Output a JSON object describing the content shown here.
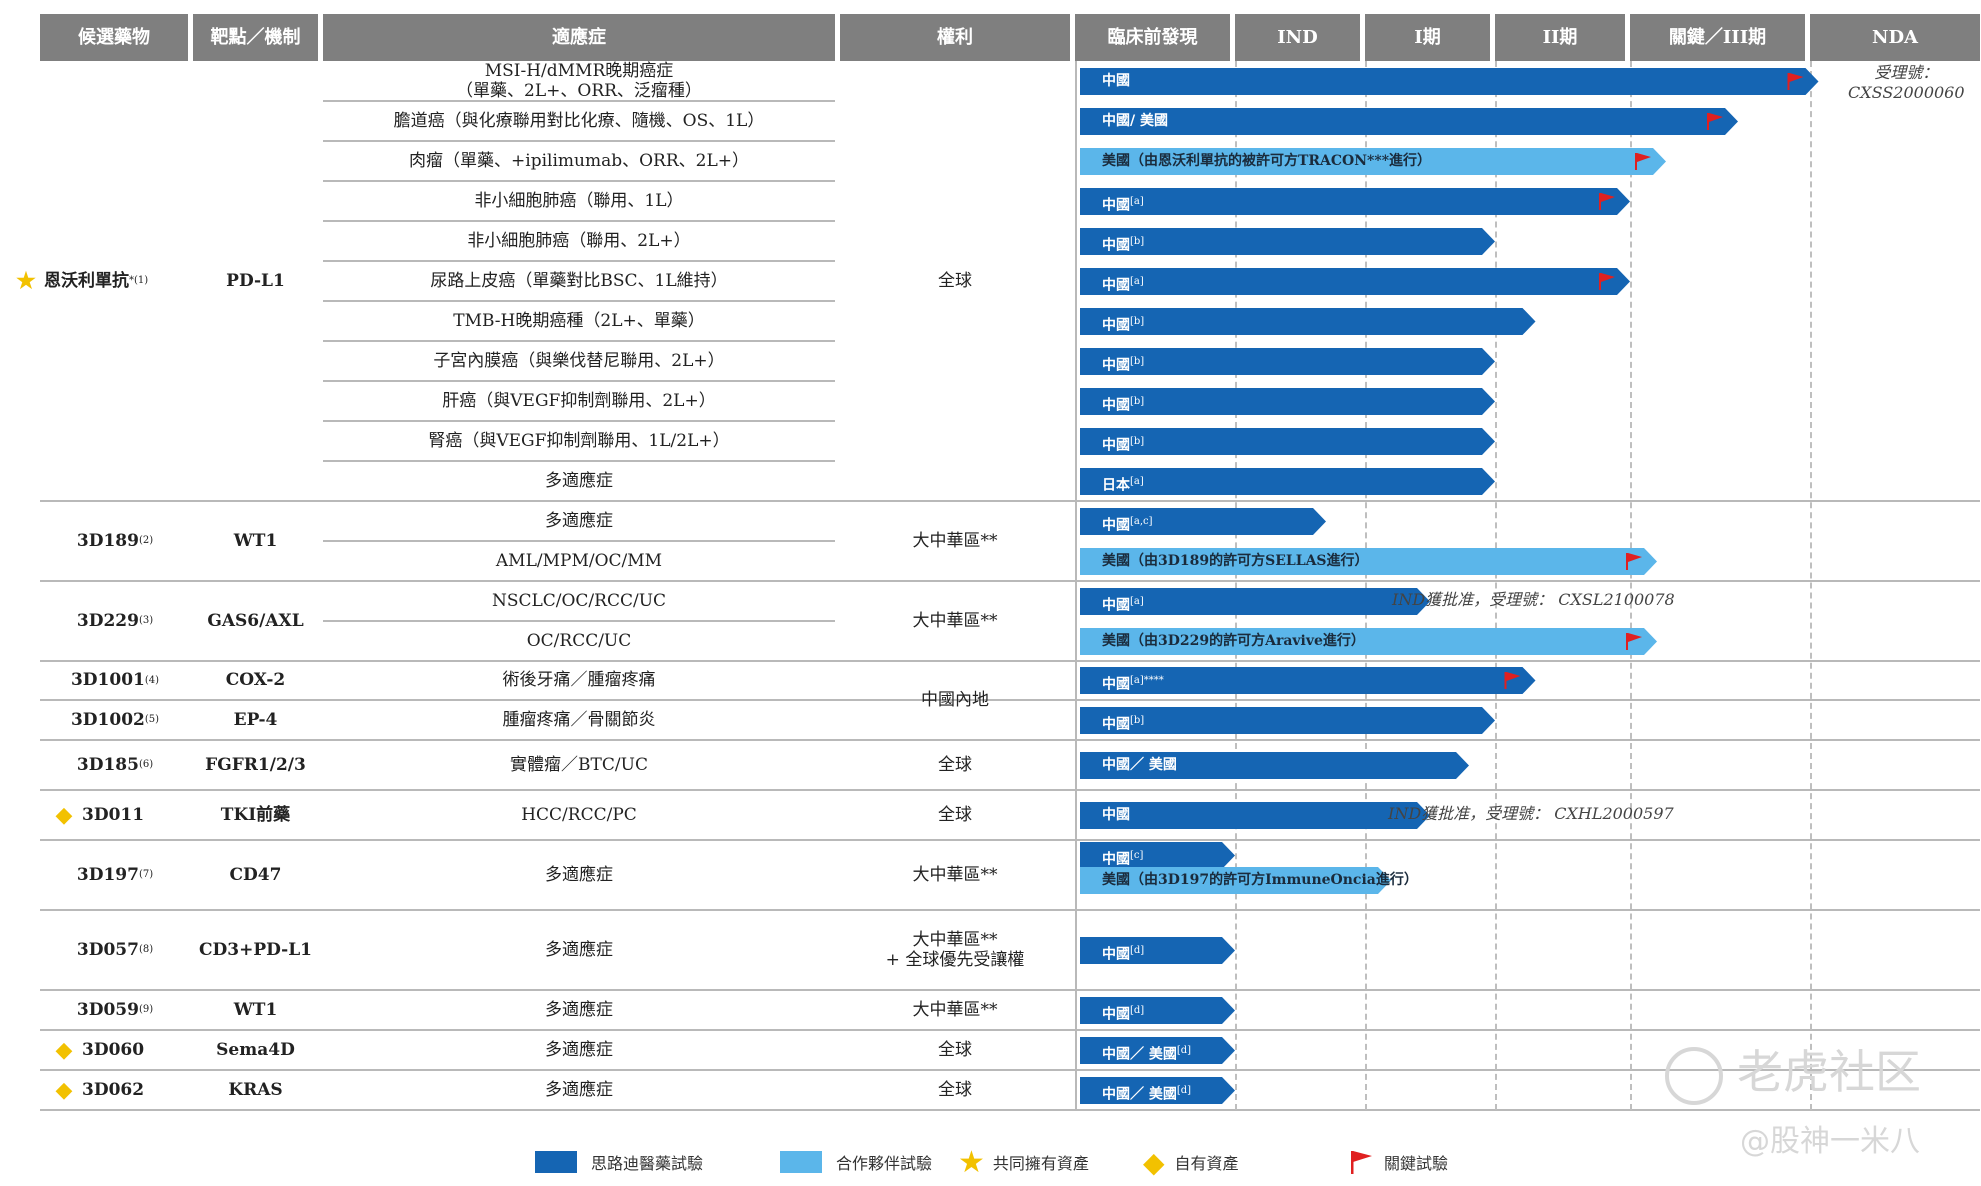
{
  "columns": {
    "candidate": "候選藥物",
    "target": "靶點／機制",
    "indication": "適應症",
    "rights": "權利",
    "stages": [
      "臨床前發現",
      "IND",
      "I期",
      "II期",
      "關鍵／III期",
      "NDA"
    ]
  },
  "colors": {
    "in_house": "#1565b3",
    "partner": "#5bb6ea",
    "flag": "#e02020",
    "star": "#f2c100",
    "diamond": "#f2c100",
    "header_bg": "#7f7f7f"
  },
  "groups": [
    {
      "candidate": "恩沃利單抗",
      "sup": "*(1)",
      "marker": "star",
      "target": "PD-L1",
      "rights": "全球",
      "rows": [
        0,
        10
      ]
    },
    {
      "candidate": "3D189",
      "sup": "(2)",
      "marker": "",
      "target": "WT1",
      "rights": "大中華區**",
      "rows": [
        11,
        12
      ]
    },
    {
      "candidate": "3D229",
      "sup": "(3)",
      "marker": "",
      "target": "GAS6/AXL",
      "rights": "大中華區**",
      "rows": [
        13,
        14
      ]
    },
    {
      "candidate": "3D1001",
      "sup": "(4)",
      "marker": "",
      "target": "COX-2",
      "rights": "",
      "rows": [
        15,
        15
      ]
    },
    {
      "candidate": "3D1002",
      "sup": "(5)",
      "marker": "",
      "target": "EP-4",
      "rights": "",
      "rows": [
        16,
        16
      ]
    },
    {
      "candidate": "3D185",
      "sup": "(6)",
      "marker": "",
      "target": "FGFR1/2/3",
      "rights": "全球",
      "rows": [
        17,
        17
      ]
    },
    {
      "candidate": "3D011",
      "sup": "",
      "marker": "diamond",
      "target": "TKI前藥",
      "rights": "全球",
      "rows": [
        18,
        18
      ]
    },
    {
      "candidate": "3D197",
      "sup": "(7)",
      "marker": "",
      "target": "CD47",
      "rights": "大中華區**",
      "rows": [
        19,
        19
      ]
    },
    {
      "candidate": "3D057",
      "sup": "(8)",
      "marker": "",
      "target": "CD3+PD-L1",
      "rights": "大中華區**\n+ 全球優先受讓權",
      "rows": [
        20,
        20
      ]
    },
    {
      "candidate": "3D059",
      "sup": "(9)",
      "marker": "",
      "target": "WT1",
      "rights": "大中華區**",
      "rows": [
        21,
        21
      ]
    },
    {
      "candidate": "3D060",
      "sup": "",
      "marker": "diamond",
      "target": "Sema4D",
      "rights": "全球",
      "rows": [
        22,
        22
      ]
    },
    {
      "candidate": "3D062",
      "sup": "",
      "marker": "diamond",
      "target": "KRAS",
      "rights": "全球",
      "rows": [
        23,
        23
      ]
    }
  ],
  "shared_rights": [
    {
      "text": "中國內地",
      "rows": [
        15,
        16
      ]
    }
  ],
  "indications": [
    "MSI-H/dMMR晚期癌症\n（單藥、2L+、ORR、泛瘤種）",
    "膽道癌（與化療聯用對比化療、隨機、OS、1L）",
    "肉瘤（單藥、+ipilimumab、ORR、2L+）",
    "非小細胞肺癌（聯用、1L）",
    "非小細胞肺癌（聯用、2L+）",
    "尿路上皮癌（單藥對比BSC、1L維持）",
    "TMB-H晚期癌種（2L+、單藥）",
    "子宮內膜癌（與樂伐替尼聯用、2L+）",
    "肝癌（與VEGF抑制劑聯用、2L+）",
    "腎癌（與VEGF抑制劑聯用、1L/2L+）",
    "多適應症",
    "多適應症",
    "AML/MPM/OC/MM",
    "NSCLC/OC/RCC/UC",
    "OC/RCC/UC",
    "術後牙痛／腫瘤疼痛",
    "腫瘤疼痛／骨關節炎",
    "實體瘤／BTC/UC",
    "HCC/RCC/PC",
    "多適應症",
    "多適應症",
    "多適應症",
    "多適應症",
    "多適應症"
  ],
  "notes": [
    {
      "row": 0,
      "text": "受理號：\nCXSS2000060"
    },
    {
      "row": 13,
      "text": "IND獲批准，受理號： CXSL2100078"
    },
    {
      "row": 18,
      "text": "IND獲批准，受理號： CXHL2000597"
    }
  ],
  "legend": {
    "in_house": "思路迪醫藥試驗",
    "partner": "合作夥伴試驗",
    "co_owned": "共同擁有資產",
    "own": "自有資產",
    "pivotal": "關鍵試驗"
  },
  "watermark": {
    "logo": "老虎社区",
    "handle": "@股神一米八"
  },
  "chart_data": {
    "type": "bar",
    "title": "",
    "stage_axis": [
      "臨床前發現",
      "IND",
      "I期",
      "II期",
      "關鍵／III期",
      "NDA"
    ],
    "series_types": [
      "思路迪醫藥試驗",
      "合作夥伴試驗"
    ],
    "bars": [
      {
        "row": 0,
        "sub": 0,
        "label": "中國",
        "sup": "",
        "kind": "in_house",
        "stage_end": 5.05,
        "flag": true
      },
      {
        "row": 1,
        "sub": 0,
        "label": "中國/ 美國",
        "sup": "",
        "kind": "in_house",
        "stage_end": 4.6,
        "flag": true
      },
      {
        "row": 2,
        "sub": 0,
        "label": "美國（由恩沃利單抗的被許可方TRACON***進行）",
        "sup": "",
        "kind": "partner",
        "stage_end": 4.2,
        "flag": true
      },
      {
        "row": 3,
        "sub": 0,
        "label": "中國",
        "sup": "[a]",
        "kind": "in_house",
        "stage_end": 4.0,
        "flag": true
      },
      {
        "row": 4,
        "sub": 0,
        "label": "中國",
        "sup": "[b]",
        "kind": "in_house",
        "stage_end": 3.0,
        "flag": false
      },
      {
        "row": 5,
        "sub": 0,
        "label": "中國",
        "sup": "[a]",
        "kind": "in_house",
        "stage_end": 4.0,
        "flag": true
      },
      {
        "row": 6,
        "sub": 0,
        "label": "中國",
        "sup": "[b]",
        "kind": "in_house",
        "stage_end": 3.3,
        "flag": false
      },
      {
        "row": 7,
        "sub": 0,
        "label": "中國",
        "sup": "[b]",
        "kind": "in_house",
        "stage_end": 3.0,
        "flag": false
      },
      {
        "row": 8,
        "sub": 0,
        "label": "中國",
        "sup": "[b]",
        "kind": "in_house",
        "stage_end": 3.0,
        "flag": false
      },
      {
        "row": 9,
        "sub": 0,
        "label": "中國",
        "sup": "[b]",
        "kind": "in_house",
        "stage_end": 3.0,
        "flag": false
      },
      {
        "row": 10,
        "sub": 0,
        "label": "日本",
        "sup": "[a]",
        "kind": "in_house",
        "stage_end": 3.0,
        "flag": false
      },
      {
        "row": 11,
        "sub": 0,
        "label": "中國",
        "sup": "[a,c]",
        "kind": "in_house",
        "stage_end": 1.7,
        "flag": false
      },
      {
        "row": 12,
        "sub": 0,
        "label": "美國（由3D189的許可方SELLAS進行）",
        "sup": "",
        "kind": "partner",
        "stage_end": 4.15,
        "flag": true
      },
      {
        "row": 13,
        "sub": 0,
        "label": "中國",
        "sup": "[a]",
        "kind": "in_house",
        "stage_end": 2.5,
        "flag": false
      },
      {
        "row": 14,
        "sub": 0,
        "label": "美國（由3D229的許可方Aravive進行）",
        "sup": "",
        "kind": "partner",
        "stage_end": 4.15,
        "flag": true
      },
      {
        "row": 15,
        "sub": 0,
        "label": "中國",
        "sup": "[a]****",
        "kind": "in_house",
        "stage_end": 3.3,
        "flag": true
      },
      {
        "row": 16,
        "sub": 0,
        "label": "中國",
        "sup": "[b]",
        "kind": "in_house",
        "stage_end": 3.0,
        "flag": false
      },
      {
        "row": 17,
        "sub": 0,
        "label": "中國／ 美國",
        "sup": "",
        "kind": "in_house",
        "stage_end": 2.8,
        "flag": false
      },
      {
        "row": 18,
        "sub": 0,
        "label": "中國",
        "sup": "",
        "kind": "in_house",
        "stage_end": 2.5,
        "flag": false
      },
      {
        "row": 19,
        "sub": 0,
        "label": "中國",
        "sup": "[c]",
        "kind": "in_house",
        "stage_end": 1.0,
        "flag": false
      },
      {
        "row": 19,
        "sub": 1,
        "label": "美國（由3D197的許可方ImmuneOncia進行）",
        "sup": "",
        "kind": "partner",
        "stage_end": 2.2,
        "flag": false
      },
      {
        "row": 20,
        "sub": 0,
        "label": "中國",
        "sup": "[d]",
        "kind": "in_house",
        "stage_end": 1.0,
        "flag": false
      },
      {
        "row": 21,
        "sub": 0,
        "label": "中國",
        "sup": "[d]",
        "kind": "in_house",
        "stage_end": 1.0,
        "flag": false
      },
      {
        "row": 22,
        "sub": 0,
        "label": "中國／ 美國",
        "sup": "[d]",
        "kind": "in_house",
        "stage_end": 1.0,
        "flag": false
      },
      {
        "row": 23,
        "sub": 0,
        "label": "中國／ 美國",
        "sup": "[d]",
        "kind": "in_house",
        "stage_end": 1.0,
        "flag": false
      }
    ]
  }
}
